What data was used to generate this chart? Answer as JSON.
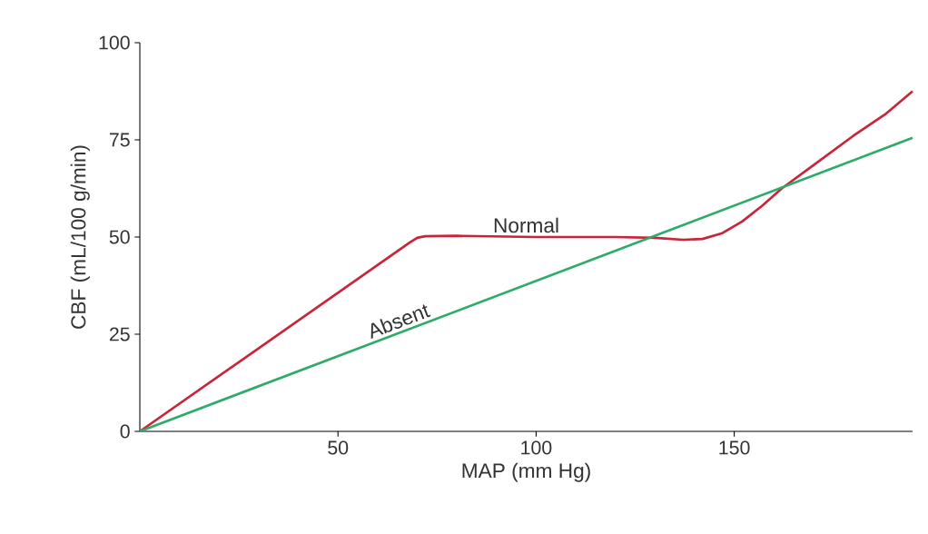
{
  "chart_data": {
    "type": "line",
    "xlabel": "MAP (mm Hg)",
    "ylabel": "CBF (mL/100 g/min)",
    "xlim": [
      0,
      195
    ],
    "ylim": [
      0,
      100
    ],
    "xticks": [
      50,
      100,
      150
    ],
    "yticks": [
      0,
      25,
      50,
      75,
      100
    ],
    "grid": false,
    "legend": false,
    "marker": "none",
    "line_style": "solid",
    "series": [
      {
        "name": "Normal",
        "color": "#c8243a",
        "x": [
          0,
          68,
          70,
          72,
          80,
          100,
          120,
          130,
          137,
          142,
          147,
          152,
          157,
          162,
          170,
          180,
          188,
          195
        ],
        "values": [
          0,
          48.5,
          49.8,
          50.2,
          50.3,
          50,
          50,
          49.8,
          49.3,
          49.5,
          51,
          54,
          58,
          62.5,
          68.5,
          76,
          81.5,
          87.5
        ]
      },
      {
        "name": "Absent",
        "color": "#2eaa6a",
        "x": [
          0,
          195
        ],
        "values": [
          0,
          75.5
        ]
      }
    ]
  }
}
